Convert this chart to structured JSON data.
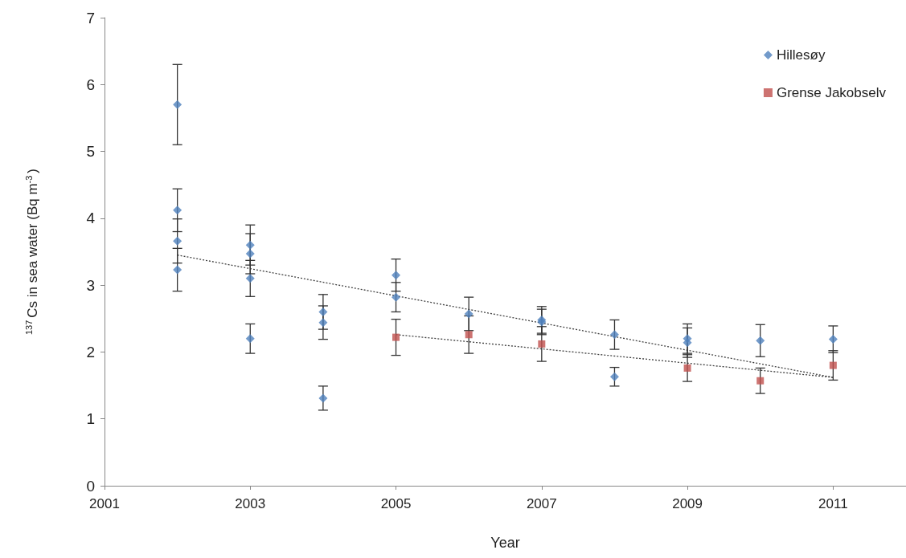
{
  "chart_data": {
    "type": "scatter",
    "xlabel": "Year",
    "ylabel": "$^{137}$Cs in sea water (Bq m$^{-3}$)",
    "xlim": [
      2001,
      2012
    ],
    "xticks": [
      2001,
      2003,
      2005,
      2007,
      2009,
      2011
    ],
    "ylim": [
      0,
      7
    ],
    "yticks": [
      0,
      1,
      2,
      3,
      4,
      5,
      6,
      7
    ],
    "grid": false,
    "legend": "top right",
    "series": [
      {
        "name": "Hillesøy",
        "color": "#4f81bd",
        "marker": "diamond",
        "x": [
          2002,
          2002,
          2002,
          2002,
          2003,
          2003,
          2003,
          2003,
          2004,
          2004,
          2004,
          2005,
          2005,
          2006,
          2007,
          2007,
          2008,
          2008,
          2009,
          2009,
          2010,
          2011
        ],
        "values": [
          5.7,
          4.12,
          3.66,
          3.23,
          3.6,
          3.47,
          3.1,
          2.2,
          2.6,
          2.44,
          1.31,
          3.15,
          2.82,
          2.57,
          2.48,
          2.45,
          2.26,
          1.63,
          2.2,
          2.14,
          2.17,
          2.19
        ],
        "errors": [
          0.6,
          0.32,
          0.33,
          0.32,
          0.3,
          0.3,
          0.27,
          0.22,
          0.26,
          0.25,
          0.18,
          0.24,
          0.22,
          0.25,
          0.2,
          0.19,
          0.22,
          0.14,
          0.22,
          0.22,
          0.24,
          0.2
        ]
      },
      {
        "name": "Grense Jakobselv",
        "color": "#c0504d",
        "marker": "square",
        "x": [
          2005,
          2006,
          2007,
          2009,
          2010,
          2011
        ],
        "values": [
          2.22,
          2.26,
          2.12,
          1.76,
          1.57,
          1.8
        ],
        "errors": [
          0.27,
          0.28,
          0.26,
          0.2,
          0.19,
          0.22
        ]
      },
      {
        "type": "line",
        "color": "#404040",
        "line_style": "dotted",
        "marker": "none",
        "x": [
          2002,
          2011
        ],
        "values": [
          3.45,
          1.62
        ]
      },
      {
        "type": "line",
        "color": "#404040",
        "line_style": "dotted",
        "marker": "none",
        "x": [
          2005,
          2011
        ],
        "values": [
          2.26,
          1.62
        ]
      }
    ]
  }
}
